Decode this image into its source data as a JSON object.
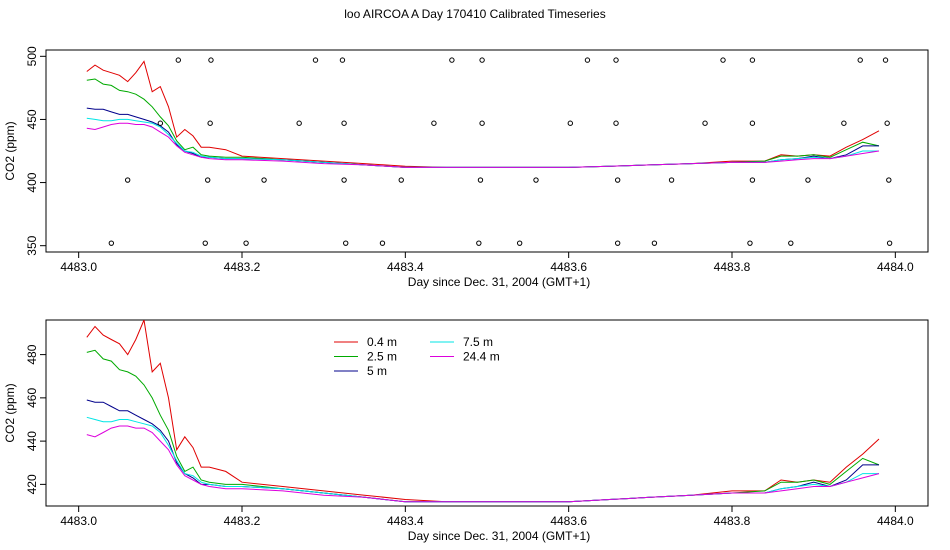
{
  "page": {
    "title": "loo AIRCOA A  Day 170410  Calibrated Timeseries"
  },
  "chart_data": [
    {
      "type": "scatter",
      "xlabel": "Day since Dec. 31, 2004 (GMT+1)",
      "ylabel": "CO2 (ppm)",
      "xlim": [
        4482.96,
        4484.04
      ],
      "ylim": [
        345,
        505
      ],
      "x_ticks": [
        4483.0,
        4483.2,
        4483.4,
        4483.6,
        4483.8,
        4484.0
      ],
      "x_tick_labels": [
        "4483.0",
        "4483.2",
        "4483.4",
        "4483.6",
        "4483.8",
        "4484.0"
      ],
      "y_ticks": [
        350,
        400,
        450,
        500
      ],
      "y_tick_labels": [
        "350",
        "400",
        "450",
        "500"
      ],
      "grid": false,
      "points_color": "#000000",
      "series_note": "",
      "points": [
        {
          "x": 4483.04,
          "y": 352
        },
        {
          "x": 4483.155,
          "y": 352
        },
        {
          "x": 4483.205,
          "y": 352
        },
        {
          "x": 4483.327,
          "y": 352
        },
        {
          "x": 4483.372,
          "y": 352
        },
        {
          "x": 4483.49,
          "y": 352
        },
        {
          "x": 4483.54,
          "y": 352
        },
        {
          "x": 4483.66,
          "y": 352
        },
        {
          "x": 4483.705,
          "y": 352
        },
        {
          "x": 4483.822,
          "y": 352
        },
        {
          "x": 4483.872,
          "y": 352
        },
        {
          "x": 4483.993,
          "y": 352
        },
        {
          "x": 4483.06,
          "y": 402
        },
        {
          "x": 4483.158,
          "y": 402
        },
        {
          "x": 4483.227,
          "y": 402
        },
        {
          "x": 4483.325,
          "y": 402
        },
        {
          "x": 4483.395,
          "y": 402
        },
        {
          "x": 4483.492,
          "y": 402
        },
        {
          "x": 4483.56,
          "y": 402
        },
        {
          "x": 4483.66,
          "y": 402
        },
        {
          "x": 4483.726,
          "y": 402
        },
        {
          "x": 4483.825,
          "y": 402
        },
        {
          "x": 4483.893,
          "y": 402
        },
        {
          "x": 4483.992,
          "y": 402
        },
        {
          "x": 4483.1,
          "y": 447
        },
        {
          "x": 4483.161,
          "y": 447
        },
        {
          "x": 4483.27,
          "y": 447
        },
        {
          "x": 4483.325,
          "y": 447
        },
        {
          "x": 4483.435,
          "y": 447
        },
        {
          "x": 4483.494,
          "y": 447
        },
        {
          "x": 4483.602,
          "y": 447
        },
        {
          "x": 4483.658,
          "y": 447
        },
        {
          "x": 4483.767,
          "y": 447
        },
        {
          "x": 4483.825,
          "y": 447
        },
        {
          "x": 4483.937,
          "y": 447
        },
        {
          "x": 4483.99,
          "y": 447
        },
        {
          "x": 4483.122,
          "y": 497
        },
        {
          "x": 4483.162,
          "y": 497
        },
        {
          "x": 4483.29,
          "y": 497
        },
        {
          "x": 4483.323,
          "y": 497
        },
        {
          "x": 4483.457,
          "y": 497
        },
        {
          "x": 4483.494,
          "y": 497
        },
        {
          "x": 4483.623,
          "y": 497
        },
        {
          "x": 4483.658,
          "y": 497
        },
        {
          "x": 4483.789,
          "y": 497
        },
        {
          "x": 4483.825,
          "y": 497
        },
        {
          "x": 4483.957,
          "y": 497
        },
        {
          "x": 4483.988,
          "y": 497
        }
      ],
      "series": [
        {
          "name": "0.4 m",
          "color": "#e00000",
          "x": [
            4483.01,
            4483.02,
            4483.03,
            4483.04,
            4483.05,
            4483.06,
            4483.07,
            4483.08,
            4483.09,
            4483.1,
            4483.11,
            4483.12,
            4483.13,
            4483.14,
            4483.15,
            4483.16,
            4483.18,
            4483.2,
            4483.25,
            4483.3,
            4483.35,
            4483.4,
            4483.45,
            4483.5,
            4483.55,
            4483.6,
            4483.65,
            4483.7,
            4483.75,
            4483.8,
            4483.84,
            4483.86,
            4483.88,
            4483.9,
            4483.92,
            4483.94,
            4483.96,
            4483.98
          ],
          "y": [
            488,
            493,
            489,
            487,
            485,
            480,
            487,
            496,
            472,
            476,
            460,
            436,
            442,
            437,
            428,
            428,
            426,
            421,
            419,
            417,
            415,
            413,
            412,
            412,
            412,
            412,
            413,
            414,
            415,
            417,
            417,
            422,
            421,
            422,
            421,
            428,
            434,
            441
          ]
        },
        {
          "name": "2.5 m",
          "color": "#00aa00",
          "x": [
            4483.01,
            4483.02,
            4483.03,
            4483.04,
            4483.05,
            4483.06,
            4483.07,
            4483.08,
            4483.09,
            4483.1,
            4483.11,
            4483.12,
            4483.13,
            4483.14,
            4483.15,
            4483.16,
            4483.18,
            4483.2,
            4483.25,
            4483.3,
            4483.35,
            4483.4,
            4483.45,
            4483.5,
            4483.55,
            4483.6,
            4483.65,
            4483.7,
            4483.75,
            4483.8,
            4483.84,
            4483.86,
            4483.88,
            4483.9,
            4483.92,
            4483.94,
            4483.96,
            4483.98
          ],
          "y": [
            481,
            482,
            478,
            477,
            473,
            472,
            470,
            466,
            460,
            452,
            445,
            433,
            426,
            428,
            422,
            421,
            420,
            420,
            418,
            416,
            414,
            412,
            412,
            412,
            412,
            412,
            413,
            414,
            415,
            416,
            417,
            421,
            421,
            422,
            420,
            426,
            432,
            429
          ]
        },
        {
          "name": "5 m",
          "color": "#00008b",
          "x": [
            4483.01,
            4483.02,
            4483.03,
            4483.04,
            4483.05,
            4483.06,
            4483.07,
            4483.08,
            4483.09,
            4483.1,
            4483.11,
            4483.12,
            4483.13,
            4483.14,
            4483.15,
            4483.16,
            4483.18,
            4483.2,
            4483.25,
            4483.3,
            4483.35,
            4483.4,
            4483.45,
            4483.5,
            4483.55,
            4483.6,
            4483.65,
            4483.7,
            4483.75,
            4483.8,
            4483.84,
            4483.86,
            4483.88,
            4483.9,
            4483.92,
            4483.94,
            4483.96,
            4483.98
          ],
          "y": [
            459,
            458,
            458,
            456,
            454,
            454,
            452,
            450,
            448,
            445,
            440,
            430,
            425,
            423,
            420,
            420,
            419,
            419,
            418,
            416,
            414,
            412,
            412,
            412,
            412,
            412,
            413,
            414,
            415,
            416,
            416,
            418,
            419,
            421,
            419,
            422,
            429,
            429
          ]
        },
        {
          "name": "7.5 m",
          "color": "#00e5e5",
          "x": [
            4483.01,
            4483.02,
            4483.03,
            4483.04,
            4483.05,
            4483.06,
            4483.07,
            4483.08,
            4483.09,
            4483.1,
            4483.11,
            4483.12,
            4483.13,
            4483.14,
            4483.15,
            4483.16,
            4483.18,
            4483.2,
            4483.25,
            4483.3,
            4483.35,
            4483.4,
            4483.45,
            4483.5,
            4483.55,
            4483.6,
            4483.65,
            4483.7,
            4483.75,
            4483.8,
            4483.84,
            4483.86,
            4483.88,
            4483.9,
            4483.92,
            4483.94,
            4483.96,
            4483.98
          ],
          "y": [
            451,
            450,
            449,
            449,
            450,
            450,
            449,
            448,
            447,
            444,
            438,
            431,
            425,
            424,
            421,
            420,
            419,
            419,
            418,
            416,
            414,
            412,
            412,
            412,
            412,
            412,
            413,
            414,
            415,
            416,
            416,
            418,
            419,
            420,
            419,
            421,
            425,
            425
          ]
        },
        {
          "name": "24.4 m",
          "color": "#dd00dd",
          "x": [
            4483.01,
            4483.02,
            4483.03,
            4483.04,
            4483.05,
            4483.06,
            4483.07,
            4483.08,
            4483.09,
            4483.1,
            4483.11,
            4483.12,
            4483.13,
            4483.14,
            4483.15,
            4483.16,
            4483.18,
            4483.2,
            4483.25,
            4483.3,
            4483.35,
            4483.4,
            4483.45,
            4483.5,
            4483.55,
            4483.6,
            4483.65,
            4483.7,
            4483.75,
            4483.8,
            4483.84,
            4483.86,
            4483.88,
            4483.9,
            4483.92,
            4483.94,
            4483.96,
            4483.98
          ],
          "y": [
            443,
            442,
            444,
            446,
            447,
            447,
            446,
            446,
            444,
            440,
            436,
            429,
            424,
            422,
            420,
            419,
            418,
            418,
            417,
            415,
            414,
            412,
            412,
            412,
            412,
            412,
            413,
            414,
            415,
            416,
            416,
            417,
            418,
            419,
            419,
            421,
            423,
            425
          ]
        }
      ]
    },
    {
      "type": "line",
      "xlabel": "Day since Dec. 31, 2004 (GMT+1)",
      "ylabel": "CO2 (ppm)",
      "xlim": [
        4482.96,
        4484.04
      ],
      "ylim": [
        410,
        496
      ],
      "x_ticks": [
        4483.0,
        4483.2,
        4483.4,
        4483.6,
        4483.8,
        4484.0
      ],
      "x_tick_labels": [
        "4483.0",
        "4483.2",
        "4483.4",
        "4483.6",
        "4483.8",
        "4484.0"
      ],
      "y_ticks": [
        420,
        440,
        460,
        480
      ],
      "y_tick_labels": [
        "420",
        "440",
        "460",
        "480"
      ],
      "grid": false,
      "legend": "top-left",
      "legend_entries": [
        "0.4 m",
        "2.5 m",
        "5 m",
        "7.5 m",
        "24.4 m"
      ],
      "series_ref": "same as chart 0 series"
    }
  ]
}
